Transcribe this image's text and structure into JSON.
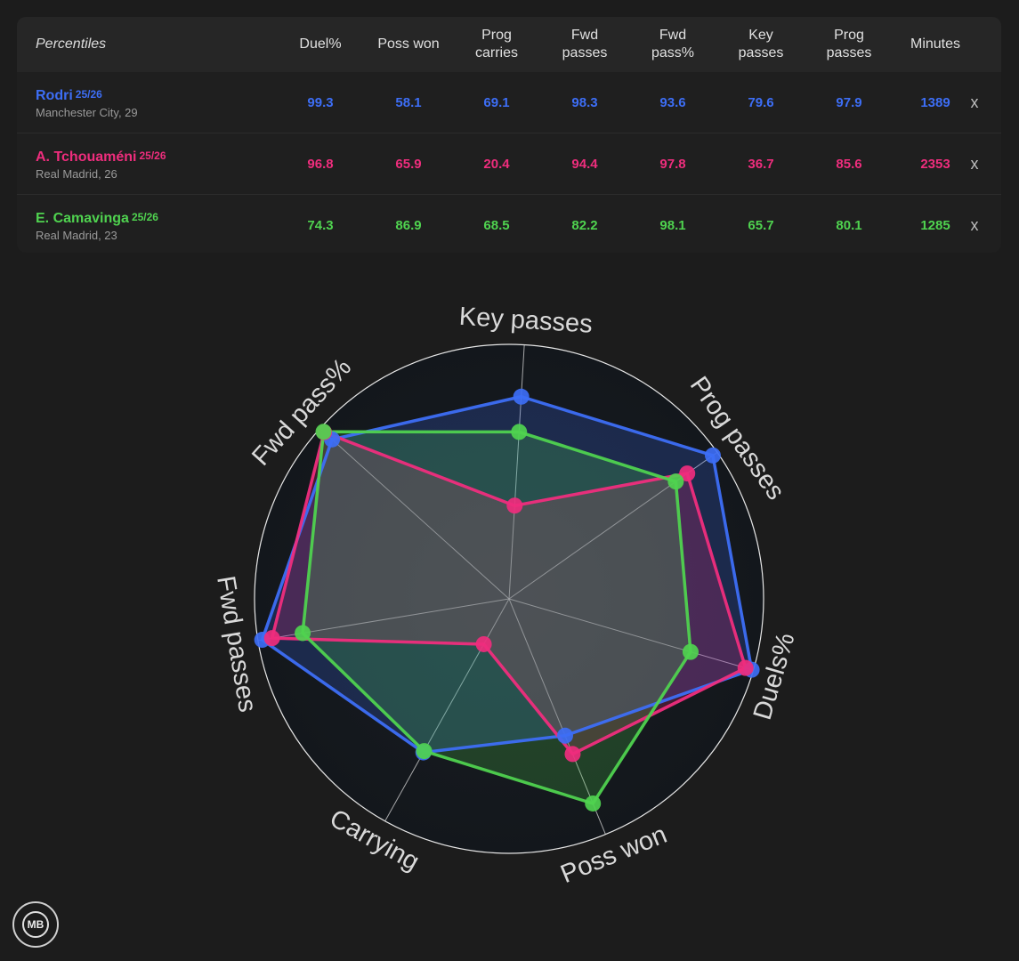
{
  "table": {
    "header_label": "Percentiles",
    "columns": [
      "Duel%",
      "Poss won",
      "Prog\ncarries",
      "Fwd\npasses",
      "Fwd\npass%",
      "Key\npasses",
      "Prog\npasses",
      "Minutes"
    ],
    "close_symbol": "x",
    "players": [
      {
        "name": "Rodri",
        "season": "25/26",
        "meta": "Manchester City, 29",
        "color": "#3d6ef5",
        "values": [
          "99.3",
          "58.1",
          "69.1",
          "98.3",
          "93.6",
          "79.6",
          "97.9",
          "1389"
        ]
      },
      {
        "name": "A. Tchouaméni",
        "season": "25/26",
        "meta": "Real Madrid, 26",
        "color": "#ef2d7d",
        "values": [
          "96.8",
          "65.9",
          "20.4",
          "94.4",
          "97.8",
          "36.7",
          "85.6",
          "2353"
        ]
      },
      {
        "name": "E. Camavinga",
        "season": "25/26",
        "meta": "Real Madrid, 23",
        "color": "#4fd24f",
        "values": [
          "74.3",
          "86.9",
          "68.5",
          "82.2",
          "98.1",
          "65.7",
          "80.1",
          "1285"
        ]
      }
    ]
  },
  "chart_data": {
    "type": "radar",
    "axes": [
      "Key passes",
      "Prog passes",
      "Duels%",
      "Poss won",
      "Carrying",
      "Fwd passes",
      "Fwd pass%"
    ],
    "range": [
      0,
      100
    ],
    "series": [
      {
        "name": "Rodri",
        "color": "#3d6ef5",
        "values": [
          79.6,
          97.9,
          99.3,
          58.1,
          69.1,
          98.3,
          93.6
        ]
      },
      {
        "name": "A. Tchouaméni",
        "color": "#ef2d7d",
        "values": [
          36.7,
          85.6,
          96.8,
          65.9,
          20.4,
          94.4,
          97.8
        ]
      },
      {
        "name": "E. Camavinga",
        "color": "#4fd24f",
        "values": [
          65.7,
          80.1,
          74.3,
          86.9,
          68.5,
          82.2,
          98.1
        ]
      }
    ]
  },
  "logo": {
    "text": "MB"
  }
}
